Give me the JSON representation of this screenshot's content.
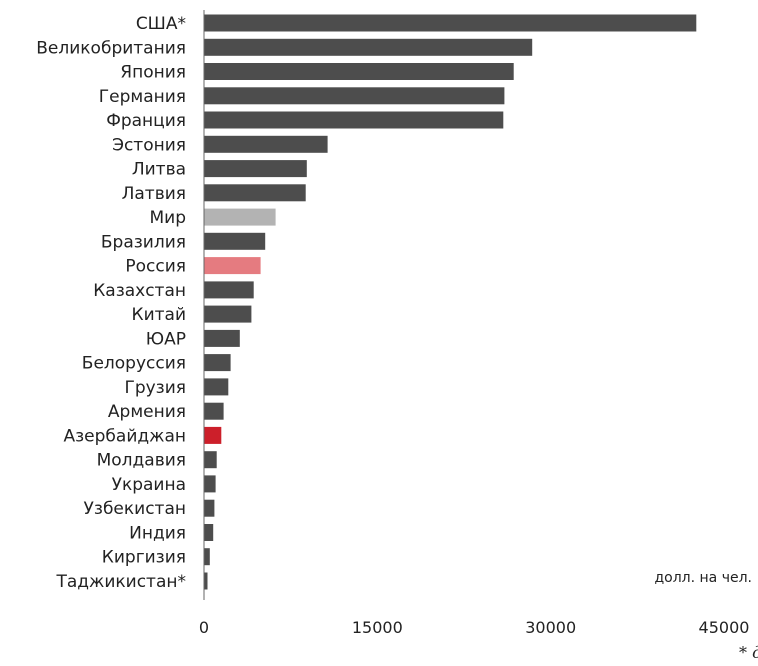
{
  "chart_data": {
    "type": "bar",
    "orientation": "horizontal",
    "categories": [
      "США*",
      "Великобритания",
      "Япония",
      "Германия",
      "Франция",
      "Эстония",
      "Литва",
      "Латвия",
      "Мир",
      "Бразилия",
      "Россия",
      "Казахстан",
      "Китай",
      "ЮАР",
      "Белоруссия",
      "Грузия",
      "Армения",
      "Азербайджан",
      "Молдавия",
      "Украина",
      "Узбекистан",
      "Индия",
      "Киргизия",
      "Таджикистан*"
    ],
    "values": [
      42600,
      28400,
      26800,
      26000,
      25900,
      10700,
      8900,
      8800,
      6200,
      5300,
      4900,
      4300,
      4100,
      3100,
      2300,
      2100,
      1700,
      1500,
      1100,
      1000,
      900,
      800,
      500,
      300
    ],
    "colors": [
      "#4d4d4d",
      "#4d4d4d",
      "#4d4d4d",
      "#4d4d4d",
      "#4d4d4d",
      "#4d4d4d",
      "#4d4d4d",
      "#4d4d4d",
      "#b3b3b3",
      "#4d4d4d",
      "#e57b80",
      "#4d4d4d",
      "#4d4d4d",
      "#4d4d4d",
      "#4d4d4d",
      "#4d4d4d",
      "#4d4d4d",
      "#cc1f2a",
      "#4d4d4d",
      "#4d4d4d",
      "#4d4d4d",
      "#4d4d4d",
      "#4d4d4d",
      "#4d4d4d"
    ],
    "xticks": [
      0,
      15000,
      30000,
      45000
    ],
    "xlim": [
      0,
      45000
    ],
    "unit_label": "долл. на чел.",
    "title": "",
    "xlabel": "",
    "ylabel": "",
    "grid": false,
    "footnote": "* д"
  }
}
